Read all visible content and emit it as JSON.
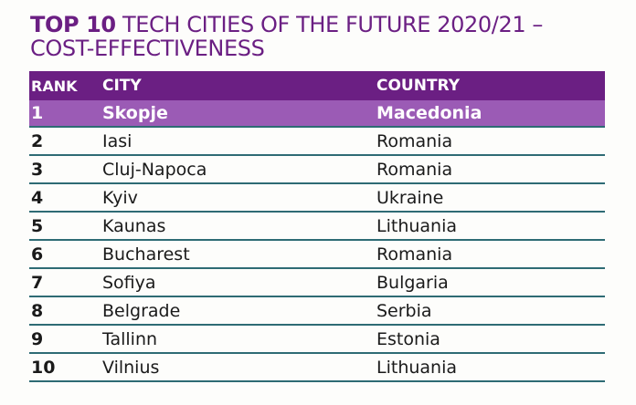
{
  "title": {
    "bold": "TOP 10",
    "line1_rest": " TECH CITIES OF THE FUTURE 2020/21 –",
    "line2": "COST-EFFECTIVENESS"
  },
  "table": {
    "headers": {
      "rank": "RANK",
      "city": "CITY",
      "country": "COUNTRY"
    },
    "rows": [
      {
        "rank": "1",
        "city": "Skopje",
        "country": "Macedonia"
      },
      {
        "rank": "2",
        "city": "Iasi",
        "country": "Romania"
      },
      {
        "rank": "3",
        "city": "Cluj-Napoca",
        "country": "Romania"
      },
      {
        "rank": "4",
        "city": "Kyiv",
        "country": "Ukraine"
      },
      {
        "rank": "5",
        "city": "Kaunas",
        "country": "Lithuania"
      },
      {
        "rank": "6",
        "city": "Bucharest",
        "country": "Romania"
      },
      {
        "rank": "7",
        "city": "Sofiya",
        "country": "Bulgaria"
      },
      {
        "rank": "8",
        "city": "Belgrade",
        "country": "Serbia"
      },
      {
        "rank": "9",
        "city": "Tallinn",
        "country": "Estonia"
      },
      {
        "rank": "10",
        "city": "Vilnius",
        "country": "Lithuania"
      }
    ]
  },
  "colors": {
    "accent_purple": "#6b1f83",
    "highlight_purple": "#9b5bb5",
    "rule_teal": "#2e6b74"
  }
}
